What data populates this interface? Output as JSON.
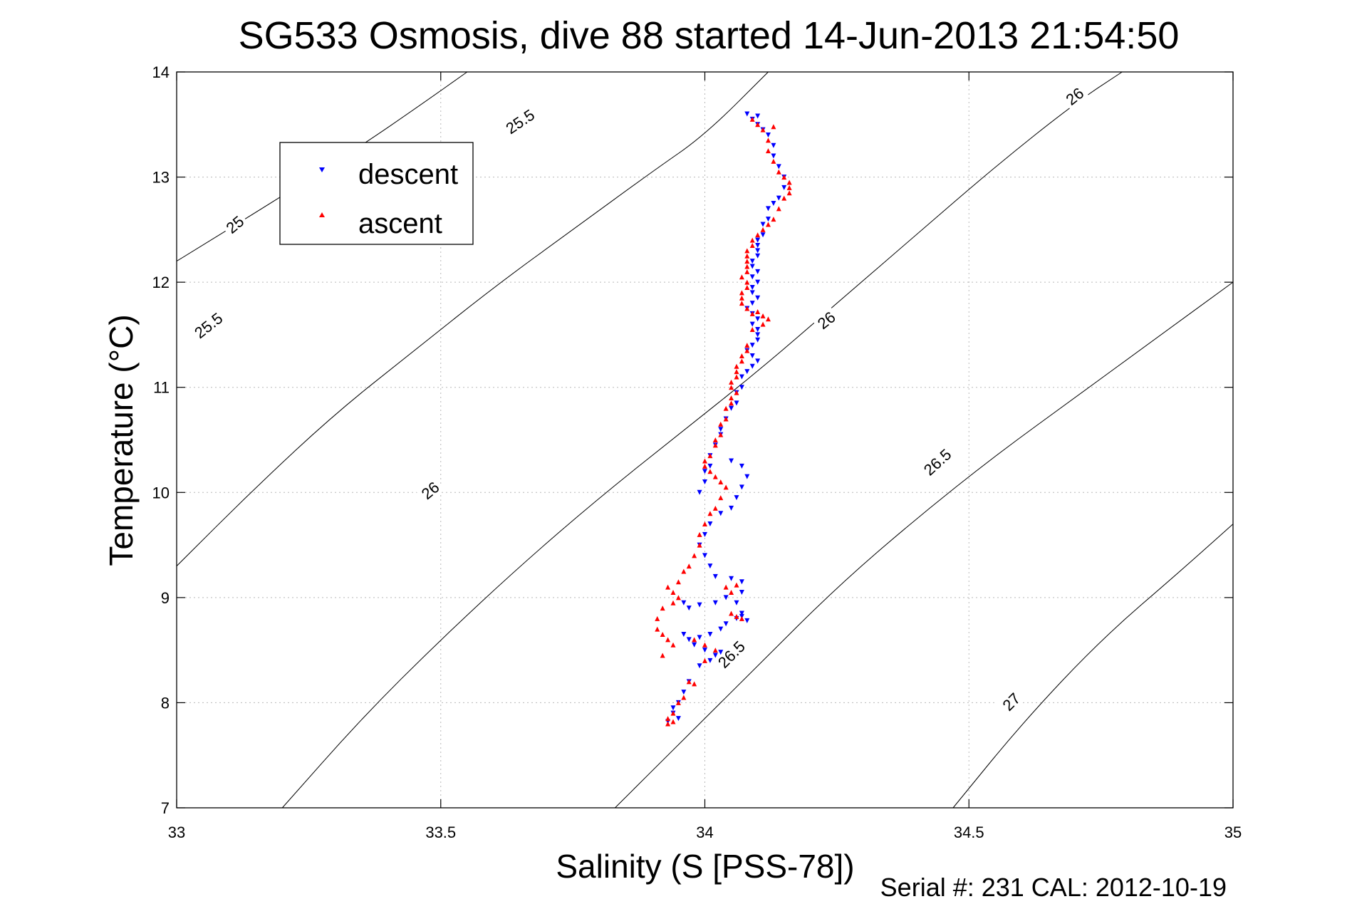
{
  "chart_data": {
    "type": "scatter",
    "title": "SG533 Osmosis, dive 88 started 14-Jun-2013 21:54:50",
    "xlabel": "Salinity (S [PSS-78])",
    "ylabel": "Temperature (°C)",
    "footer": "Serial #: 231  CAL: 2012-10-19",
    "xlim": [
      33,
      35
    ],
    "ylim": [
      7,
      14
    ],
    "x_ticks": [
      "33",
      "33.5",
      "34",
      "34.5",
      "35"
    ],
    "y_ticks": [
      "7",
      "8",
      "9",
      "10",
      "11",
      "12",
      "13",
      "14"
    ],
    "grid": true,
    "legend_position": "top-left",
    "series": [
      {
        "name": "descent",
        "color": "#0000ff",
        "marker": "triangle-down",
        "points": [
          [
            34.08,
            13.6
          ],
          [
            34.1,
            13.58
          ],
          [
            34.09,
            13.55
          ],
          [
            34.1,
            13.5
          ],
          [
            34.11,
            13.45
          ],
          [
            34.12,
            13.4
          ],
          [
            34.13,
            13.3
          ],
          [
            34.13,
            13.2
          ],
          [
            34.14,
            13.1
          ],
          [
            34.15,
            13.0
          ],
          [
            34.15,
            12.9
          ],
          [
            34.14,
            12.8
          ],
          [
            34.13,
            12.75
          ],
          [
            34.12,
            12.7
          ],
          [
            34.12,
            12.6
          ],
          [
            34.11,
            12.55
          ],
          [
            34.11,
            12.45
          ],
          [
            34.1,
            12.4
          ],
          [
            34.1,
            12.35
          ],
          [
            34.1,
            12.3
          ],
          [
            34.1,
            12.25
          ],
          [
            34.09,
            12.2
          ],
          [
            34.09,
            12.15
          ],
          [
            34.1,
            12.1
          ],
          [
            34.09,
            12.05
          ],
          [
            34.1,
            12.0
          ],
          [
            34.09,
            11.95
          ],
          [
            34.09,
            11.9
          ],
          [
            34.1,
            11.85
          ],
          [
            34.09,
            11.8
          ],
          [
            34.08,
            11.75
          ],
          [
            34.09,
            11.7
          ],
          [
            34.1,
            11.65
          ],
          [
            34.09,
            11.6
          ],
          [
            34.1,
            11.55
          ],
          [
            34.1,
            11.5
          ],
          [
            34.1,
            11.45
          ],
          [
            34.09,
            11.4
          ],
          [
            34.08,
            11.35
          ],
          [
            34.09,
            11.3
          ],
          [
            34.1,
            11.25
          ],
          [
            34.09,
            11.2
          ],
          [
            34.08,
            11.15
          ],
          [
            34.07,
            11.1
          ],
          [
            34.07,
            11.0
          ],
          [
            34.06,
            10.95
          ],
          [
            34.06,
            10.85
          ],
          [
            34.05,
            10.8
          ],
          [
            34.04,
            10.7
          ],
          [
            34.03,
            10.6
          ],
          [
            34.03,
            10.55
          ],
          [
            34.02,
            10.45
          ],
          [
            34.01,
            10.35
          ],
          [
            34.01,
            10.25
          ],
          [
            34.0,
            10.2
          ],
          [
            34.0,
            10.1
          ],
          [
            33.99,
            10.0
          ],
          [
            34.05,
            10.3
          ],
          [
            34.07,
            10.25
          ],
          [
            34.08,
            10.15
          ],
          [
            34.07,
            10.05
          ],
          [
            34.06,
            9.95
          ],
          [
            34.05,
            9.85
          ],
          [
            34.03,
            9.8
          ],
          [
            34.01,
            9.7
          ],
          [
            34.0,
            9.6
          ],
          [
            33.99,
            9.5
          ],
          [
            34.0,
            9.4
          ],
          [
            34.01,
            9.3
          ],
          [
            34.02,
            9.2
          ],
          [
            34.05,
            9.18
          ],
          [
            34.07,
            9.15
          ],
          [
            34.07,
            9.05
          ],
          [
            34.04,
            9.0
          ],
          [
            34.02,
            8.95
          ],
          [
            33.99,
            8.93
          ],
          [
            33.97,
            8.9
          ],
          [
            33.96,
            8.95
          ],
          [
            34.06,
            8.95
          ],
          [
            34.07,
            8.85
          ],
          [
            34.06,
            8.8
          ],
          [
            34.04,
            8.75
          ],
          [
            34.03,
            8.7
          ],
          [
            34.01,
            8.65
          ],
          [
            33.99,
            8.62
          ],
          [
            33.97,
            8.6
          ],
          [
            33.96,
            8.65
          ],
          [
            33.98,
            8.55
          ],
          [
            34.0,
            8.5
          ],
          [
            34.02,
            8.45
          ],
          [
            34.01,
            8.4
          ],
          [
            33.99,
            8.35
          ],
          [
            33.97,
            8.2
          ],
          [
            33.96,
            8.1
          ],
          [
            33.95,
            8.0
          ],
          [
            33.94,
            7.95
          ],
          [
            33.94,
            7.9
          ],
          [
            33.95,
            7.85
          ],
          [
            33.93,
            7.82
          ],
          [
            34.07,
            8.82
          ],
          [
            34.08,
            8.78
          ],
          [
            34.03,
            8.48
          ]
        ]
      },
      {
        "name": "ascent",
        "color": "#ff0000",
        "marker": "triangle-up",
        "points": [
          [
            34.09,
            13.55
          ],
          [
            34.1,
            13.5
          ],
          [
            34.11,
            13.45
          ],
          [
            34.13,
            13.48
          ],
          [
            34.12,
            13.35
          ],
          [
            34.12,
            13.25
          ],
          [
            34.13,
            13.15
          ],
          [
            34.14,
            13.05
          ],
          [
            34.15,
            13.0
          ],
          [
            34.16,
            12.95
          ],
          [
            34.16,
            12.9
          ],
          [
            34.16,
            12.85
          ],
          [
            34.15,
            12.8
          ],
          [
            34.14,
            12.7
          ],
          [
            34.13,
            12.6
          ],
          [
            34.12,
            12.55
          ],
          [
            34.11,
            12.5
          ],
          [
            34.1,
            12.45
          ],
          [
            34.09,
            12.4
          ],
          [
            34.09,
            12.35
          ],
          [
            34.08,
            12.3
          ],
          [
            34.08,
            12.25
          ],
          [
            34.08,
            12.2
          ],
          [
            34.08,
            12.15
          ],
          [
            34.08,
            12.1
          ],
          [
            34.07,
            12.05
          ],
          [
            34.08,
            12.0
          ],
          [
            34.08,
            11.95
          ],
          [
            34.07,
            11.9
          ],
          [
            34.07,
            11.85
          ],
          [
            34.07,
            11.8
          ],
          [
            34.08,
            11.75
          ],
          [
            34.09,
            11.7
          ],
          [
            34.1,
            11.72
          ],
          [
            34.11,
            11.68
          ],
          [
            34.12,
            11.65
          ],
          [
            34.11,
            11.6
          ],
          [
            34.09,
            11.55
          ],
          [
            34.08,
            11.4
          ],
          [
            34.08,
            11.35
          ],
          [
            34.07,
            11.3
          ],
          [
            34.07,
            11.25
          ],
          [
            34.06,
            11.2
          ],
          [
            34.06,
            11.15
          ],
          [
            34.06,
            11.1
          ],
          [
            34.05,
            11.05
          ],
          [
            34.05,
            11.0
          ],
          [
            34.06,
            10.95
          ],
          [
            34.05,
            10.9
          ],
          [
            34.05,
            10.85
          ],
          [
            34.04,
            10.8
          ],
          [
            34.04,
            10.7
          ],
          [
            34.03,
            10.65
          ],
          [
            34.03,
            10.55
          ],
          [
            34.02,
            10.5
          ],
          [
            34.02,
            10.45
          ],
          [
            34.01,
            10.35
          ],
          [
            34.0,
            10.3
          ],
          [
            34.0,
            10.25
          ],
          [
            34.01,
            10.2
          ],
          [
            34.02,
            10.15
          ],
          [
            34.03,
            10.1
          ],
          [
            34.04,
            10.05
          ],
          [
            34.03,
            9.95
          ],
          [
            34.02,
            9.85
          ],
          [
            34.01,
            9.8
          ],
          [
            34.0,
            9.7
          ],
          [
            33.99,
            9.6
          ],
          [
            33.99,
            9.5
          ],
          [
            33.98,
            9.4
          ],
          [
            33.97,
            9.3
          ],
          [
            33.96,
            9.25
          ],
          [
            33.95,
            9.15
          ],
          [
            33.93,
            9.1
          ],
          [
            33.94,
            9.05
          ],
          [
            33.95,
            9.0
          ],
          [
            33.94,
            8.95
          ],
          [
            33.92,
            8.9
          ],
          [
            33.91,
            8.8
          ],
          [
            33.91,
            8.7
          ],
          [
            33.92,
            8.65
          ],
          [
            33.93,
            8.6
          ],
          [
            33.94,
            8.55
          ],
          [
            33.92,
            8.45
          ],
          [
            33.98,
            8.6
          ],
          [
            34.0,
            8.55
          ],
          [
            34.02,
            8.5
          ],
          [
            34.04,
            9.1
          ],
          [
            34.06,
            9.12
          ],
          [
            34.05,
            9.05
          ],
          [
            34.05,
            8.85
          ],
          [
            34.06,
            8.82
          ],
          [
            34.07,
            8.8
          ],
          [
            33.97,
            8.2
          ],
          [
            33.98,
            8.18
          ],
          [
            33.96,
            8.05
          ],
          [
            33.95,
            8.0
          ],
          [
            33.94,
            7.9
          ],
          [
            33.93,
            7.85
          ],
          [
            33.94,
            7.82
          ],
          [
            33.93,
            7.8
          ],
          [
            34.0,
            8.4
          ]
        ]
      }
    ],
    "contours": [
      {
        "label": "25",
        "points": [
          [
            33.0,
            12.2
          ],
          [
            33.2,
            12.82
          ],
          [
            33.35,
            13.3
          ],
          [
            33.46,
            13.68
          ],
          [
            33.55,
            14.0
          ]
        ]
      },
      {
        "label": "25.5",
        "points": [
          [
            33.0,
            9.3
          ],
          [
            33.15,
            10.05
          ],
          [
            33.3,
            10.75
          ],
          [
            33.45,
            11.35
          ],
          [
            33.6,
            11.95
          ],
          [
            33.75,
            12.5
          ],
          [
            33.9,
            13.05
          ],
          [
            34.0,
            13.4
          ],
          [
            34.12,
            14.0
          ]
        ]
      },
      {
        "label": "26",
        "points": [
          [
            33.2,
            7.0
          ],
          [
            33.35,
            7.85
          ],
          [
            33.5,
            8.6
          ],
          [
            33.65,
            9.3
          ],
          [
            33.8,
            9.95
          ],
          [
            33.95,
            10.55
          ],
          [
            34.1,
            11.15
          ],
          [
            34.25,
            11.8
          ],
          [
            34.4,
            12.45
          ],
          [
            34.55,
            13.1
          ],
          [
            34.7,
            13.7
          ],
          [
            34.79,
            14.0
          ]
        ]
      },
      {
        "label": "26.5",
        "points": [
          [
            33.83,
            7.0
          ],
          [
            33.95,
            7.6
          ],
          [
            34.1,
            8.35
          ],
          [
            34.25,
            9.1
          ],
          [
            34.4,
            9.75
          ],
          [
            34.55,
            10.35
          ],
          [
            34.7,
            10.9
          ],
          [
            34.85,
            11.45
          ],
          [
            35.0,
            12.0
          ]
        ]
      },
      {
        "label": "27",
        "points": [
          [
            34.47,
            7.0
          ],
          [
            34.6,
            7.8
          ],
          [
            34.75,
            8.6
          ],
          [
            34.9,
            9.25
          ],
          [
            35.0,
            9.7
          ]
        ]
      }
    ],
    "contour_labels": [
      {
        "text": "25",
        "x": 33.11,
        "y": 12.55,
        "angle": -40
      },
      {
        "text": "25.5",
        "x": 33.06,
        "y": 11.59,
        "angle": -38
      },
      {
        "text": "25.5",
        "x": 33.65,
        "y": 13.53,
        "angle": -34
      },
      {
        "text": "26",
        "x": 32.95,
        "y": 8.53,
        "angle": -42
      },
      {
        "text": "26",
        "x": 33.48,
        "y": 10.02,
        "angle": -40
      },
      {
        "text": "26",
        "x": 34.23,
        "y": 11.64,
        "angle": -38
      },
      {
        "text": "26",
        "x": 34.7,
        "y": 13.77,
        "angle": -38
      },
      {
        "text": "26.5",
        "x": 34.05,
        "y": 8.46,
        "angle": -45
      },
      {
        "text": "26.5",
        "x": 34.44,
        "y": 10.29,
        "angle": -42
      },
      {
        "text": "26.5",
        "x": 35.18,
        "y": 12.58,
        "angle": -36
      },
      {
        "text": "27",
        "x": 34.58,
        "y": 8.01,
        "angle": -45
      },
      {
        "text": "27",
        "x": 35.17,
        "y": 9.52,
        "angle": -42
      }
    ]
  }
}
